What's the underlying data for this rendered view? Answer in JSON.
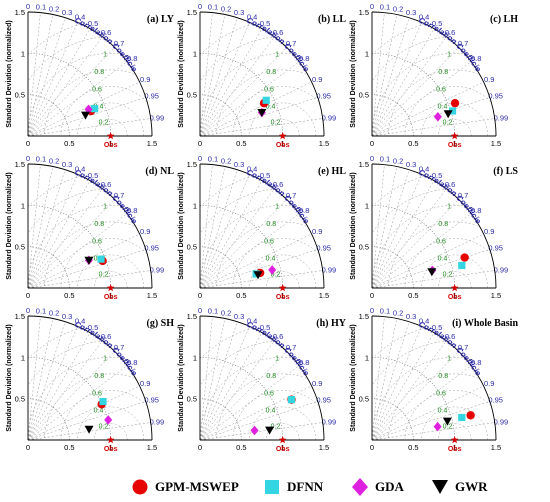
{
  "common": {
    "ylabel": "Standard Deviation (normalized)",
    "arc_label": "Correlation Coefficient",
    "ref_label": "Obs",
    "std_max": 1.5,
    "std_ticks": [
      "0",
      "0.5",
      "1",
      "1.5"
    ],
    "corr_ticks": [
      "0",
      "0.1",
      "0.2",
      "0.3",
      "0.4",
      "0.5",
      "0.6",
      "0.7",
      "0.8",
      "0.9",
      "0.95",
      "0.99"
    ],
    "rms_contours": [
      "0.2",
      "0.4",
      "0.6",
      "0.8",
      "1",
      "1.2",
      "1.4"
    ]
  },
  "colors": {
    "corr": "#2b2ba8",
    "rms": "#1f8a1f",
    "obs": "#d40000",
    "GPM-MSWEP": "#e60000",
    "DFNN": "#33d6e0",
    "GDA": "#e020e0",
    "GWR": "#000000"
  },
  "legend": [
    {
      "name": "GPM-MSWEP",
      "marker": "circle-icon"
    },
    {
      "name": "DFNN",
      "marker": "square-icon"
    },
    {
      "name": "GDA",
      "marker": "diamond-icon"
    },
    {
      "name": "GWR",
      "marker": "triangle-down-icon"
    }
  ],
  "chart_data": [
    {
      "type": "scatter",
      "panel": "(a) LY",
      "points": [
        {
          "series": "GPM-MSWEP",
          "std": 0.82,
          "corr": 0.93
        },
        {
          "series": "DFNN",
          "std": 0.87,
          "corr": 0.925
        },
        {
          "series": "GDA",
          "std": 0.8,
          "corr": 0.915
        },
        {
          "series": "GWR",
          "std": 0.74,
          "corr": 0.94
        }
      ]
    },
    {
      "type": "scatter",
      "panel": "(b) LL",
      "points": [
        {
          "series": "GPM-MSWEP",
          "std": 0.87,
          "corr": 0.89
        },
        {
          "series": "DFNN",
          "std": 0.91,
          "corr": 0.88
        },
        {
          "series": "GDA",
          "std": 0.8,
          "corr": 0.935
        },
        {
          "series": "GWR",
          "std": 0.8,
          "corr": 0.935
        }
      ]
    },
    {
      "type": "scatter",
      "panel": "(c) LH",
      "points": [
        {
          "series": "GPM-MSWEP",
          "std": 1.08,
          "corr": 0.93
        },
        {
          "series": "DFNN",
          "std": 1.02,
          "corr": 0.955
        },
        {
          "series": "GDA",
          "std": 0.83,
          "corr": 0.96
        },
        {
          "series": "GWR",
          "std": 0.96,
          "corr": 0.96
        }
      ]
    },
    {
      "type": "scatter",
      "panel": "(d) NL",
      "points": [
        {
          "series": "GPM-MSWEP",
          "std": 0.96,
          "corr": 0.94
        },
        {
          "series": "DFNN",
          "std": 0.95,
          "corr": 0.93
        },
        {
          "series": "GDA",
          "std": 0.81,
          "corr": 0.91
        },
        {
          "series": "GWR",
          "std": 0.81,
          "corr": 0.91
        }
      ]
    },
    {
      "type": "scatter",
      "panel": "(e) HL",
      "points": [
        {
          "series": "GPM-MSWEP",
          "std": 0.75,
          "corr": 0.97
        },
        {
          "series": "DFNN",
          "std": 0.7,
          "corr": 0.97
        },
        {
          "series": "GDA",
          "std": 0.9,
          "corr": 0.97
        },
        {
          "series": "GWR",
          "std": 0.72,
          "corr": 0.975
        }
      ]
    },
    {
      "type": "scatter",
      "panel": "(f) LS",
      "points": [
        {
          "series": "GPM-MSWEP",
          "std": 1.18,
          "corr": 0.95
        },
        {
          "series": "DFNN",
          "std": 1.12,
          "corr": 0.97
        },
        {
          "series": "GDA",
          "std": 0.76,
          "corr": 0.96
        },
        {
          "series": "GWR",
          "std": 0.75,
          "corr": 0.965
        }
      ]
    },
    {
      "type": "scatter",
      "panel": "(g) SH",
      "points": [
        {
          "series": "GPM-MSWEP",
          "std": 0.99,
          "corr": 0.9
        },
        {
          "series": "DFNN",
          "std": 1.02,
          "corr": 0.89
        },
        {
          "series": "GDA",
          "std": 1.0,
          "corr": 0.97
        },
        {
          "series": "GWR",
          "std": 0.75,
          "corr": 0.985
        }
      ]
    },
    {
      "type": "scatter",
      "panel": "(h) HY",
      "points": [
        {
          "series": "GPM-MSWEP",
          "std": 1.21,
          "corr": 0.915
        },
        {
          "series": "DFNN",
          "std": 1.21,
          "corr": 0.915
        },
        {
          "series": "GDA",
          "std": 0.67,
          "corr": 0.985
        },
        {
          "series": "GWR",
          "std": 0.85,
          "corr": 0.99
        }
      ]
    },
    {
      "type": "scatter",
      "panel": "(i) Whole Basin",
      "points": [
        {
          "series": "GPM-MSWEP",
          "std": 1.23,
          "corr": 0.97
        },
        {
          "series": "DFNN",
          "std": 1.12,
          "corr": 0.97
        },
        {
          "series": "GDA",
          "std": 0.81,
          "corr": 0.98
        },
        {
          "series": "GWR",
          "std": 0.94,
          "corr": 0.97
        }
      ]
    }
  ]
}
